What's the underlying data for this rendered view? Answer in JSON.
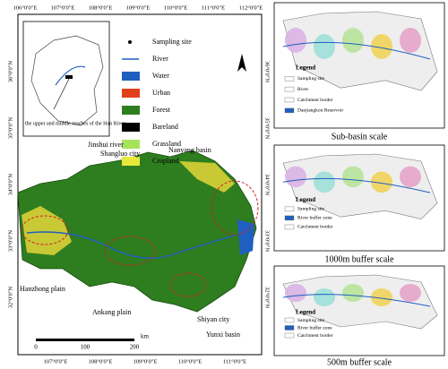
{
  "main_map": {
    "top_lon_labels": [
      "106°0'0\"E",
      "107°0'0\"E",
      "108°0'0\"E",
      "109°0'0\"E",
      "110°0'0\"E",
      "111°0'0\"E",
      "112°0'0\"E"
    ],
    "bottom_lon_labels": [
      "107°0'0\"E",
      "108°0'0\"E",
      "109°0'0\"E",
      "110°0'0\"E",
      "111°0'0\"E"
    ],
    "left_lat_labels": [
      "36°0'0\"N",
      "35°0'0\"N",
      "34°0'0\"N",
      "33°0'0\"N",
      "32°0'0\"N"
    ],
    "inset_label": "the upper and middle reaches of the Han River",
    "legend": [
      "Sampling site",
      "River",
      "Water",
      "Urban",
      "Forest",
      "Bareland",
      "Grassland",
      "Cropland"
    ],
    "places": [
      "Jinshui river",
      "Shangluo city",
      "Nanyang basin",
      "Hanzhong plain",
      "Ankang plain",
      "Shiyan city",
      "Yunxi basin"
    ],
    "scale": {
      "ticks": [
        0,
        100,
        200
      ],
      "unit": "km"
    }
  },
  "panels": [
    {
      "caption": "Sub-basin scale",
      "legend": [
        "Legend",
        "Sampling site",
        "River",
        "Catchment border",
        "Danjiangkou Reservoir"
      ]
    },
    {
      "caption": "1000m buffer scale",
      "legend": [
        "Legend",
        "Sampling site",
        "River buffer zone",
        "Catchment border"
      ]
    },
    {
      "caption": "500m buffer scale",
      "legend": [
        "Legend",
        "Sampling site",
        "River buffer zone",
        "Catchment border"
      ]
    }
  ]
}
